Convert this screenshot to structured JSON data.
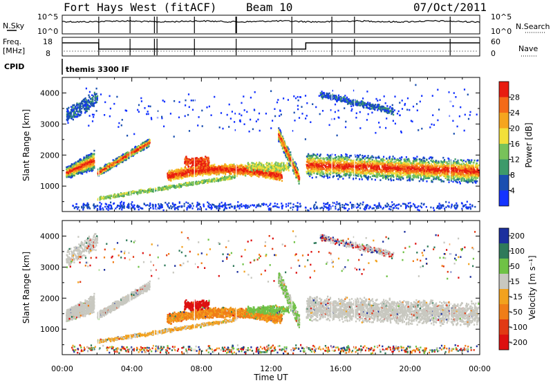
{
  "header": {
    "station": "Fort Hays West (fitACF)",
    "beam": "Beam 10",
    "date": "07/Oct/2011"
  },
  "status": {
    "nsky_label": "N.Sky",
    "nsky_ticks": [
      "10^5",
      "10^0"
    ],
    "nsearch_label": "N.Search",
    "nsearch_ticks": [
      "10^5",
      "10^0"
    ],
    "freq_label": "Freq.",
    "freq_unit": "[MHz]",
    "freq_ticks": [
      "18",
      "8"
    ],
    "nave_label": "Nave",
    "nave_ticks": [
      "60",
      "0"
    ],
    "cpid_label": "CPID",
    "cpid_value": "themis 3300 IF"
  },
  "chart_data": [
    {
      "type": "heatmap",
      "panel": "power",
      "xlabel": "",
      "ylabel": "Slant Range [km]",
      "x_ticks": [
        "00:00",
        "04:00",
        "08:00",
        "12:00",
        "16:00",
        "20:00",
        "00:00"
      ],
      "xlim_hours": [
        0,
        24
      ],
      "y_ticks": [
        1000,
        2000,
        3000,
        4000
      ],
      "ylim_km": [
        180,
        4500
      ],
      "colorbar_label": "Power [dB]",
      "colorbar_ticks": [
        4,
        8,
        12,
        16,
        20,
        24,
        28
      ],
      "colorbar_colors": [
        "#1433ff",
        "#1a4fb0",
        "#3d9a6a",
        "#78c25a",
        "#f2e03a",
        "#f5a51e",
        "#f46a18",
        "#e81c10"
      ]
    },
    {
      "type": "heatmap",
      "panel": "velocity",
      "xlabel": "Time UT",
      "ylabel": "Slant Range [km]",
      "x_ticks": [
        "00:00",
        "04:00",
        "08:00",
        "12:00",
        "16:00",
        "20:00",
        "00:00"
      ],
      "xlim_hours": [
        0,
        24
      ],
      "y_ticks": [
        1000,
        2000,
        3000,
        4000
      ],
      "ylim_km": [
        180,
        4500
      ],
      "colorbar_label": "Velocity [m s⁻¹]",
      "colorbar_ticks": [
        200,
        100,
        50,
        15,
        -15,
        -50,
        -100,
        -200
      ],
      "colorbar_colors": [
        "#1c2f9e",
        "#2f7a5a",
        "#6fc246",
        "#c8c8c0",
        "#f2a21e",
        "#f07d18",
        "#e23a14",
        "#dd1010"
      ]
    }
  ]
}
